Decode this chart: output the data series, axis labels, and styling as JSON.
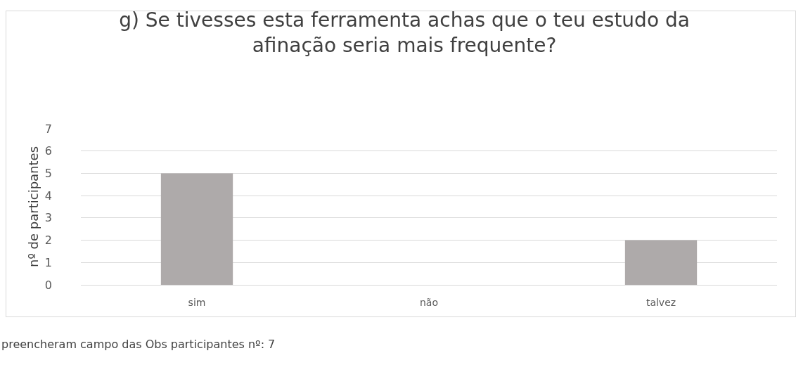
{
  "chart_data": {
    "type": "bar",
    "title": "g) Se tivesses esta ferramenta achas que o teu estudo da afinação seria mais frequente?",
    "ylabel": "nº de participantes",
    "categories": [
      "sim",
      "não",
      "talvez"
    ],
    "values": [
      5,
      0,
      2
    ],
    "color": "#aeaaaa",
    "ylim": [
      0,
      7
    ],
    "yticks": [
      0,
      1,
      2,
      3,
      4,
      5,
      6,
      7
    ],
    "grid": "y",
    "annotations": [
      "preencheram campo das Obs participantes nº: 7"
    ]
  }
}
